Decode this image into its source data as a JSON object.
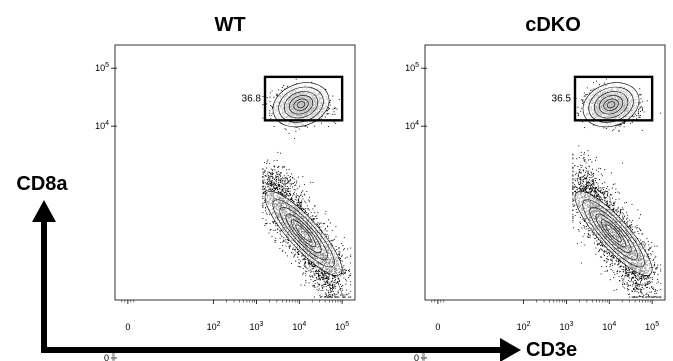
{
  "chart_data": {
    "type": "scatter",
    "xlabel": "CD3e",
    "ylabel": "CD8a",
    "x_ticks": [
      {
        "label": "0",
        "value": 0
      },
      {
        "label": "10^2",
        "value": 2
      },
      {
        "label": "10^3",
        "value": 3
      },
      {
        "label": "10^4",
        "value": 4
      },
      {
        "label": "10^5",
        "value": 5
      }
    ],
    "y_ticks": [
      {
        "label": "0",
        "value": 0
      },
      {
        "label": "10^4",
        "value": 4
      },
      {
        "label": "10^5",
        "value": 5
      }
    ],
    "panels": [
      {
        "title": "WT",
        "gate": {
          "percent": "36.8",
          "x_range": [
            3.2,
            5.0
          ],
          "y_range": [
            4.1,
            4.85
          ]
        },
        "populations": [
          {
            "name": "upper",
            "cx": 4.05,
            "cy": 4.35,
            "count": 1800,
            "sx": 0.28,
            "sy": 0.14
          },
          {
            "name": "lower",
            "cx": 4.1,
            "cy": 2.3,
            "count": 2600,
            "sx": 0.5,
            "sy": 0.6
          }
        ]
      },
      {
        "title": "cDKO",
        "gate": {
          "percent": "36.5",
          "x_range": [
            3.2,
            5.0
          ],
          "y_range": [
            4.1,
            4.85
          ]
        },
        "populations": [
          {
            "name": "upper",
            "cx": 4.05,
            "cy": 4.35,
            "count": 1800,
            "sx": 0.28,
            "sy": 0.14
          },
          {
            "name": "lower",
            "cx": 4.1,
            "cy": 2.3,
            "count": 2600,
            "sx": 0.5,
            "sy": 0.6
          }
        ]
      }
    ]
  }
}
